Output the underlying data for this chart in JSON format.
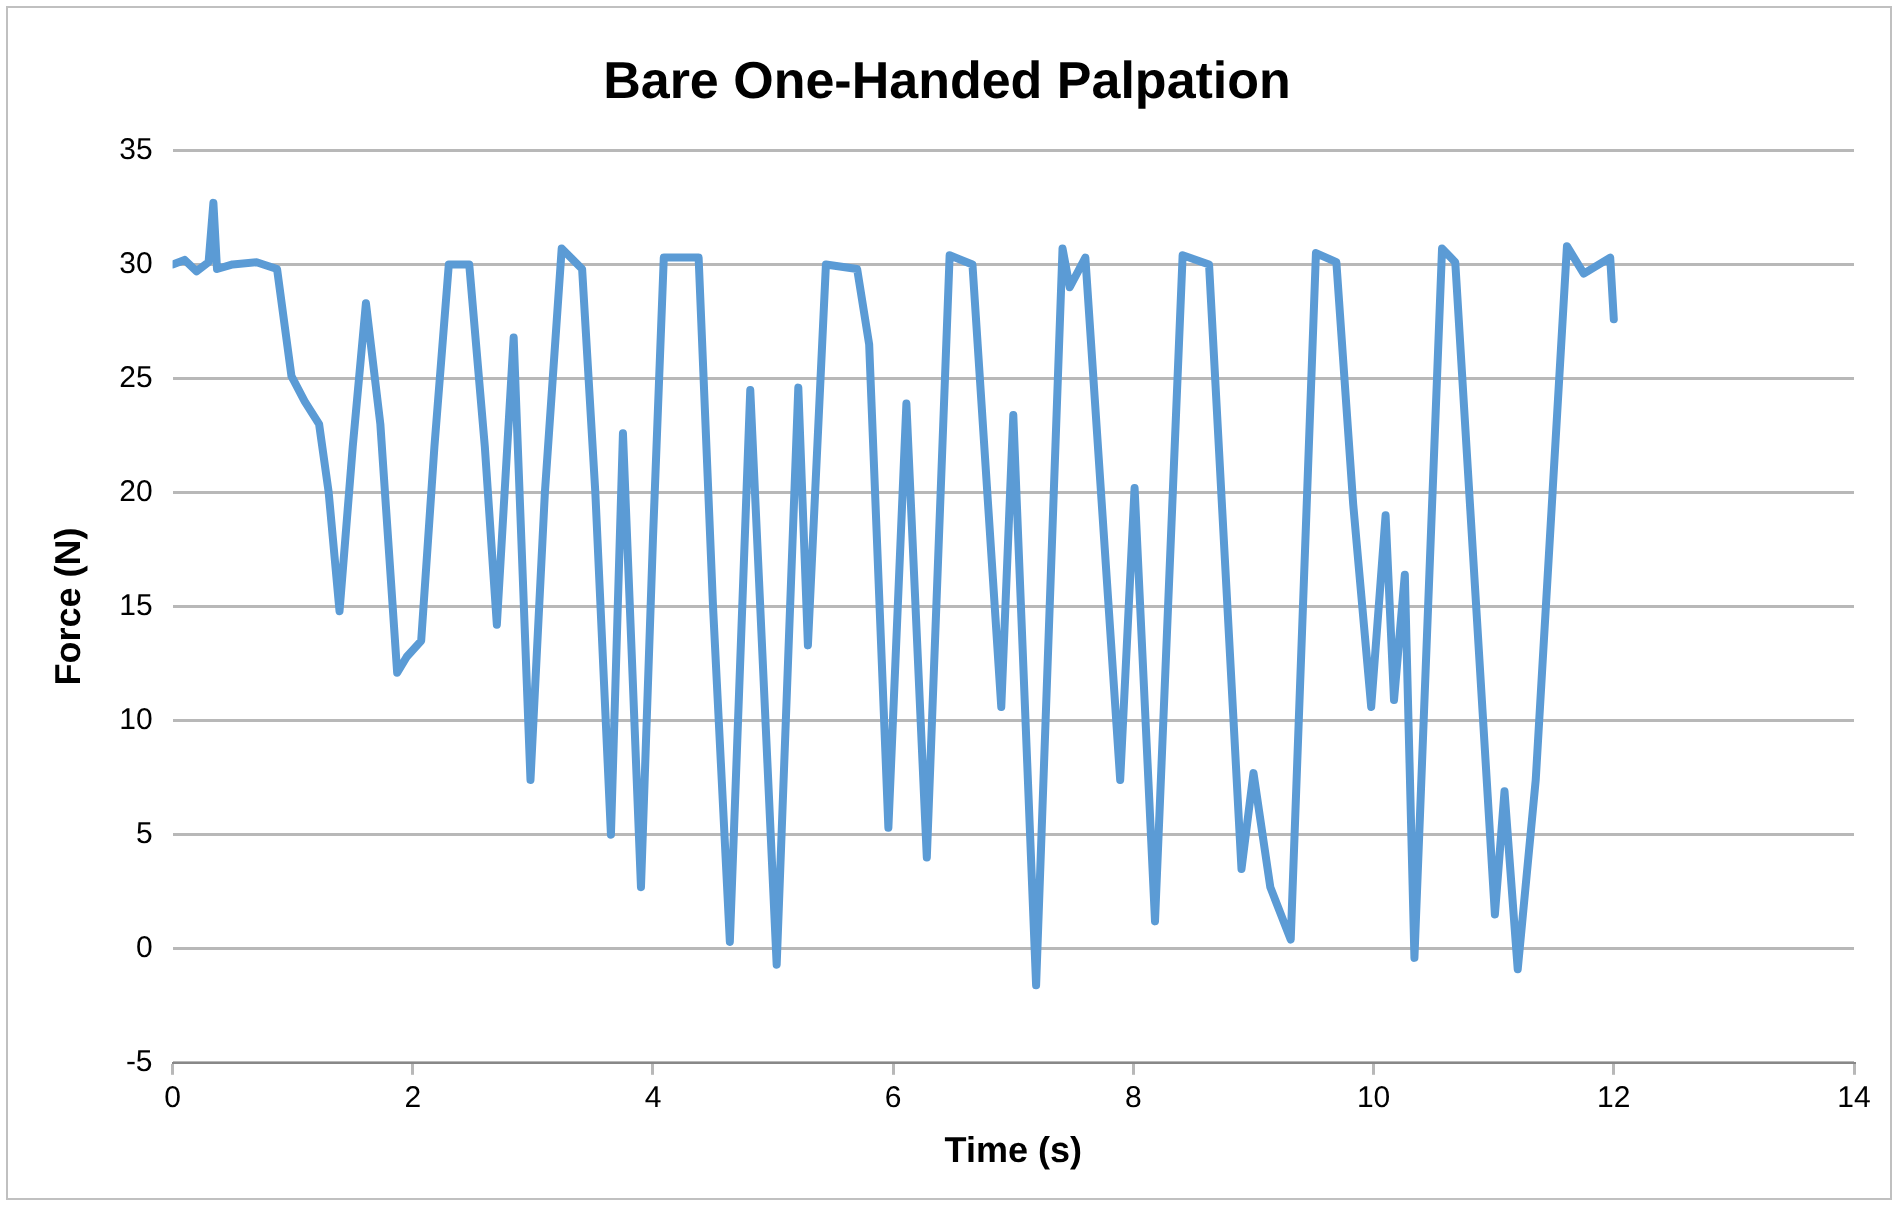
{
  "chart_data": {
    "type": "line",
    "title": "Bare One-Handed Palpation",
    "xlabel": "Time (s)",
    "ylabel": "Force (N)",
    "xlim": [
      0,
      14
    ],
    "xticks": [
      0,
      2,
      4,
      6,
      8,
      10,
      12,
      14
    ],
    "ylim": [
      -5,
      35
    ],
    "yticks": [
      -5,
      0,
      5,
      10,
      15,
      20,
      25,
      30,
      35
    ],
    "grid": "y",
    "legend": false,
    "marker": "none",
    "line_style": "solid",
    "series": [
      {
        "color": "#5b9bd5",
        "x": [
          0,
          0.1,
          0.2,
          0.3,
          0.34,
          0.37,
          0.5,
          0.7,
          0.87,
          0.99,
          1.1,
          1.22,
          1.3,
          1.39,
          1.5,
          1.61,
          1.73,
          1.87,
          1.95,
          2.07,
          2.18,
          2.3,
          2.47,
          2.6,
          2.7,
          2.84,
          2.98,
          3.1,
          3.24,
          3.41,
          3.52,
          3.65,
          3.75,
          3.9,
          4.0,
          4.09,
          4.38,
          4.5,
          4.64,
          4.81,
          5.03,
          5.21,
          5.29,
          5.44,
          5.7,
          5.8,
          5.96,
          6.11,
          6.28,
          6.47,
          6.66,
          6.9,
          7.0,
          7.19,
          7.41,
          7.47,
          7.6,
          7.89,
          8.01,
          8.18,
          8.41,
          8.63,
          8.9,
          9.0,
          9.14,
          9.31,
          9.52,
          9.69,
          9.83,
          9.98,
          10.1,
          10.17,
          10.26,
          10.34,
          10.57,
          10.68,
          11.01,
          11.09,
          11.2,
          11.35,
          11.61,
          11.75,
          11.97,
          12.0
        ],
        "values": [
          30,
          30.2,
          29.7,
          30.1,
          32.7,
          29.8,
          30,
          30.1,
          29.8,
          25.1,
          24,
          23,
          20,
          14.8,
          22,
          28.3,
          23,
          12.1,
          12.8,
          13.5,
          22,
          30,
          30,
          22,
          14.2,
          26.8,
          7.4,
          20,
          30.7,
          29.8,
          20,
          5,
          22.6,
          2.7,
          18,
          30.3,
          30.3,
          15,
          0.3,
          24.5,
          -0.7,
          24.6,
          13.3,
          30,
          29.8,
          26.5,
          5.3,
          23.9,
          4,
          30.4,
          30,
          10.6,
          23.4,
          -1.6,
          30.7,
          29,
          30.3,
          7.4,
          20.2,
          1.2,
          30.4,
          30,
          3.5,
          7.7,
          2.7,
          0.4,
          30.5,
          30.1,
          19.5,
          10.6,
          19,
          10.9,
          16.4,
          -0.4,
          30.7,
          30.1,
          1.5,
          6.9,
          -0.9,
          7.4,
          30.8,
          29.6,
          30.3,
          27.6
        ]
      }
    ]
  }
}
